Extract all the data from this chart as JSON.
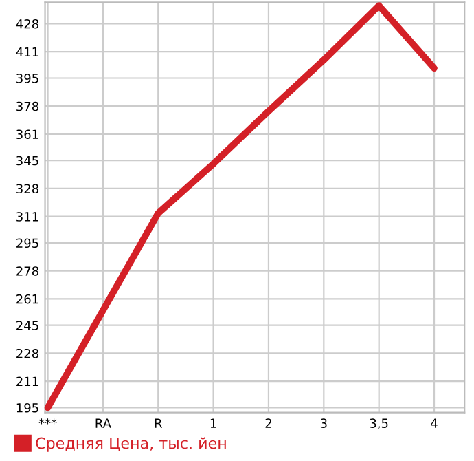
{
  "chart_data": {
    "type": "line",
    "categories": [
      "***",
      "RA",
      "R",
      "1",
      "2",
      "3",
      "3,5",
      "4"
    ],
    "series": [
      {
        "name": "Средняя Цена, тыс. йен",
        "color": "#d42027",
        "values": [
          195,
          254,
          313,
          343,
          375,
          406,
          439,
          401
        ]
      }
    ],
    "ylim": [
      192,
      441
    ],
    "yticks": [
      195,
      211,
      228,
      245,
      261,
      278,
      295,
      311,
      328,
      345,
      361,
      378,
      395,
      411,
      428
    ],
    "grid": true,
    "legend": "bottom left",
    "marker": "none",
    "line_style": "solid"
  }
}
